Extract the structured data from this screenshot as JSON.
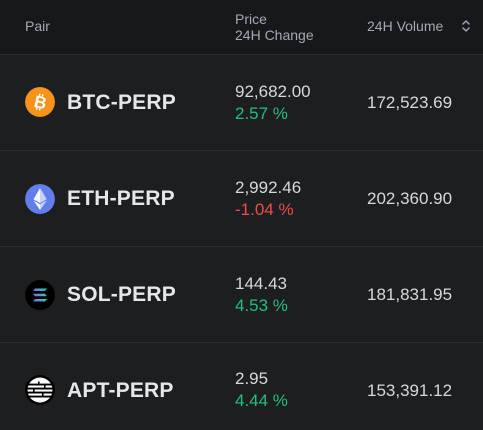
{
  "header": {
    "pair": "Pair",
    "price": "Price",
    "change": "24H Change",
    "volume": "24H Volume"
  },
  "rows": [
    {
      "icon": "bitcoin-icon",
      "pair": "BTC-PERP",
      "price": "92,682.00",
      "change": "2.57 %",
      "change_sign": "positive",
      "volume": "172,523.69"
    },
    {
      "icon": "ethereum-icon",
      "pair": "ETH-PERP",
      "price": "2,992.46",
      "change": "-1.04 %",
      "change_sign": "negative",
      "volume": "202,360.90"
    },
    {
      "icon": "solana-icon",
      "pair": "SOL-PERP",
      "price": "144.43",
      "change": "4.53 %",
      "change_sign": "positive",
      "volume": "181,831.95"
    },
    {
      "icon": "aptos-icon",
      "pair": "APT-PERP",
      "price": "2.95",
      "change": "4.44 %",
      "change_sign": "positive",
      "volume": "153,391.12"
    }
  ],
  "colors": {
    "background": "#17181b",
    "row_background": "#1d1e21",
    "positive": "#22c07a",
    "negative": "#ef4b4b",
    "bitcoin": "#f7931a",
    "ethereum": "#627eea"
  }
}
